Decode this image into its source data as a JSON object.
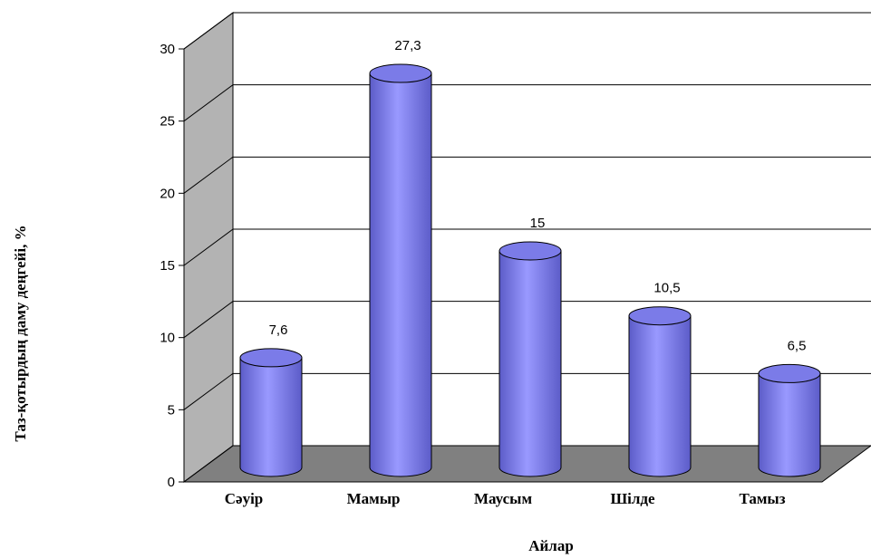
{
  "chart_data": {
    "type": "bar",
    "title": "",
    "xlabel": "Айлар",
    "ylabel": "Таз-қотырдың  даму деңгейі, %",
    "categories": [
      "Сәуір",
      "Мамыр",
      "Маусым",
      "Шілде",
      "Тамыз"
    ],
    "values": [
      7.6,
      27.3,
      15,
      10.5,
      6.5
    ],
    "value_labels": [
      "7,6",
      "27,3",
      "15",
      "10,5",
      "6,5"
    ],
    "ylim": [
      0,
      30
    ],
    "yticks": [
      "0",
      "5",
      "10",
      "15",
      "20",
      "25",
      "30"
    ],
    "grid": true,
    "bar_style": "3d-cylinder",
    "colors": {
      "bar": "#9999ff",
      "bar_dark": "#5c5cc8",
      "bar_top": "#7b7be8",
      "floor": "#808080",
      "side_wall": "#b3b3b3"
    }
  }
}
